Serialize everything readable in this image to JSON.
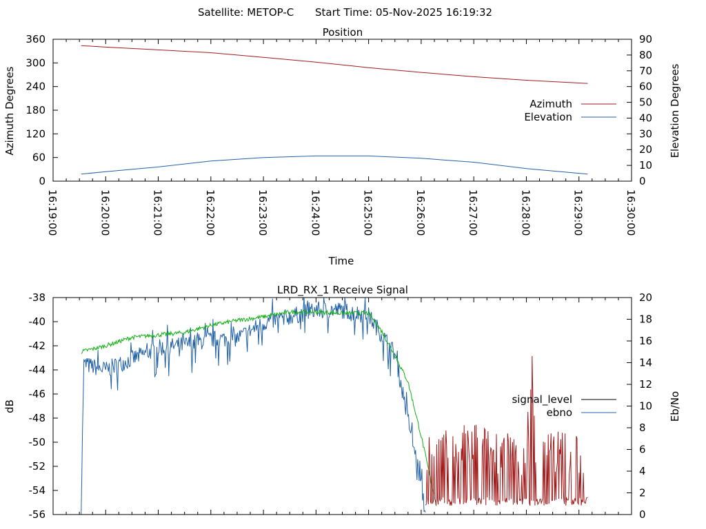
{
  "header": {
    "satellite": "Satellite: METOP-C",
    "start_time": "Start Time: 05-Nov-2025 16:19:32"
  },
  "colors": {
    "azimuth": "#a01818",
    "elevation": "#1f5fa6",
    "signal_level": "#000000",
    "ebno_legend": "#1f5fa6",
    "ebno_trace": "#1f5fa6",
    "green_trace": "#10b010",
    "red_trace": "#a01818"
  },
  "chart_data": [
    {
      "type": "line",
      "title": "Position",
      "xlabel": "Time",
      "ylabel": "Azimuth Degrees",
      "y2label": "Elevation Degrees",
      "xticks": [
        "16:19:00",
        "16:20:00",
        "16:21:00",
        "16:22:00",
        "16:23:00",
        "16:24:00",
        "16:25:00",
        "16:26:00",
        "16:27:00",
        "16:28:00",
        "16:29:00",
        "16:30:00"
      ],
      "xlim": [
        "16:19:00",
        "16:30:00"
      ],
      "ylim": [
        0,
        360
      ],
      "y2lim": [
        0,
        90
      ],
      "yticks": [
        "0",
        "60",
        "120",
        "180",
        "240",
        "300",
        "360"
      ],
      "y2ticks": [
        "0",
        "10",
        "20",
        "30",
        "40",
        "50",
        "60",
        "70",
        "80",
        "90"
      ],
      "legend_position": "right",
      "series": [
        {
          "name": "Azimuth",
          "axis": "y",
          "x": [
            "16:19:32",
            "16:20:00",
            "16:21:00",
            "16:22:00",
            "16:23:00",
            "16:24:00",
            "16:25:00",
            "16:26:00",
            "16:27:00",
            "16:28:00",
            "16:29:00",
            "16:29:10"
          ],
          "values": [
            344,
            340,
            333,
            326,
            314,
            302,
            288,
            276,
            265,
            256,
            249,
            248
          ]
        },
        {
          "name": "Elevation",
          "axis": "y2",
          "x": [
            "16:19:32",
            "16:20:00",
            "16:21:00",
            "16:22:00",
            "16:23:00",
            "16:24:00",
            "16:25:00",
            "16:26:00",
            "16:27:00",
            "16:28:00",
            "16:29:00",
            "16:29:10"
          ],
          "values": [
            4.5,
            6.0,
            9.0,
            12.8,
            15.0,
            16.0,
            16.0,
            14.5,
            12.0,
            8.0,
            5.0,
            4.5
          ]
        }
      ]
    },
    {
      "type": "line",
      "title": "LRD_RX_1 Receive Signal",
      "ylabel": "dB",
      "y2label": "Eb/No",
      "ylim": [
        -56,
        -38
      ],
      "y2lim": [
        0,
        20
      ],
      "yticks": [
        "-56",
        "-54",
        "-52",
        "-50",
        "-48",
        "-46",
        "-44",
        "-42",
        "-40",
        "-38"
      ],
      "y2ticks": [
        "0",
        "2",
        "4",
        "6",
        "8",
        "10",
        "12",
        "14",
        "16",
        "18",
        "20"
      ],
      "legend_position": "right",
      "series": [
        {
          "name": "signal_level",
          "axis": "y",
          "x": [
            "16:19:32",
            "16:20:00",
            "16:20:30",
            "16:21:00",
            "16:21:30",
            "16:22:00",
            "16:22:30",
            "16:23:00",
            "16:23:30",
            "16:24:00",
            "16:24:30",
            "16:25:00",
            "16:25:15",
            "16:25:30",
            "16:25:45",
            "16:26:00",
            "16:26:15"
          ],
          "values": [
            -42.5,
            -42.0,
            -41.3,
            -41.1,
            -40.9,
            -40.3,
            -39.9,
            -39.6,
            -39.2,
            -39.2,
            -39.3,
            -39.3,
            -40.8,
            -42.8,
            -45.0,
            -49.5,
            -54.5
          ]
        },
        {
          "name": "ebno",
          "axis": "y2",
          "x": [
            "16:19:32",
            "16:19:35",
            "16:20:00",
            "16:20:30",
            "16:21:00",
            "16:21:30",
            "16:22:00",
            "16:22:30",
            "16:23:00",
            "16:23:30",
            "16:24:00",
            "16:24:30",
            "16:25:00",
            "16:25:30",
            "16:25:45",
            "16:26:00",
            "16:26:05"
          ],
          "values": [
            0.5,
            14.0,
            13.5,
            14.5,
            15.5,
            15.8,
            16.3,
            16.4,
            17.8,
            18.4,
            19.0,
            19.0,
            18.5,
            15.0,
            9.0,
            3.0,
            0
          ]
        },
        {
          "name": "",
          "axis": "y2",
          "x": [
            "16:26:05",
            "16:26:30",
            "16:27:00",
            "16:27:30",
            "16:28:00",
            "16:28:05",
            "16:28:10",
            "16:28:30",
            "16:29:00",
            "16:29:10"
          ],
          "values": [
            6.5,
            6.8,
            7.5,
            6.8,
            6.0,
            16.5,
            6.0,
            7.0,
            6.6,
            0.8
          ]
        }
      ]
    }
  ]
}
